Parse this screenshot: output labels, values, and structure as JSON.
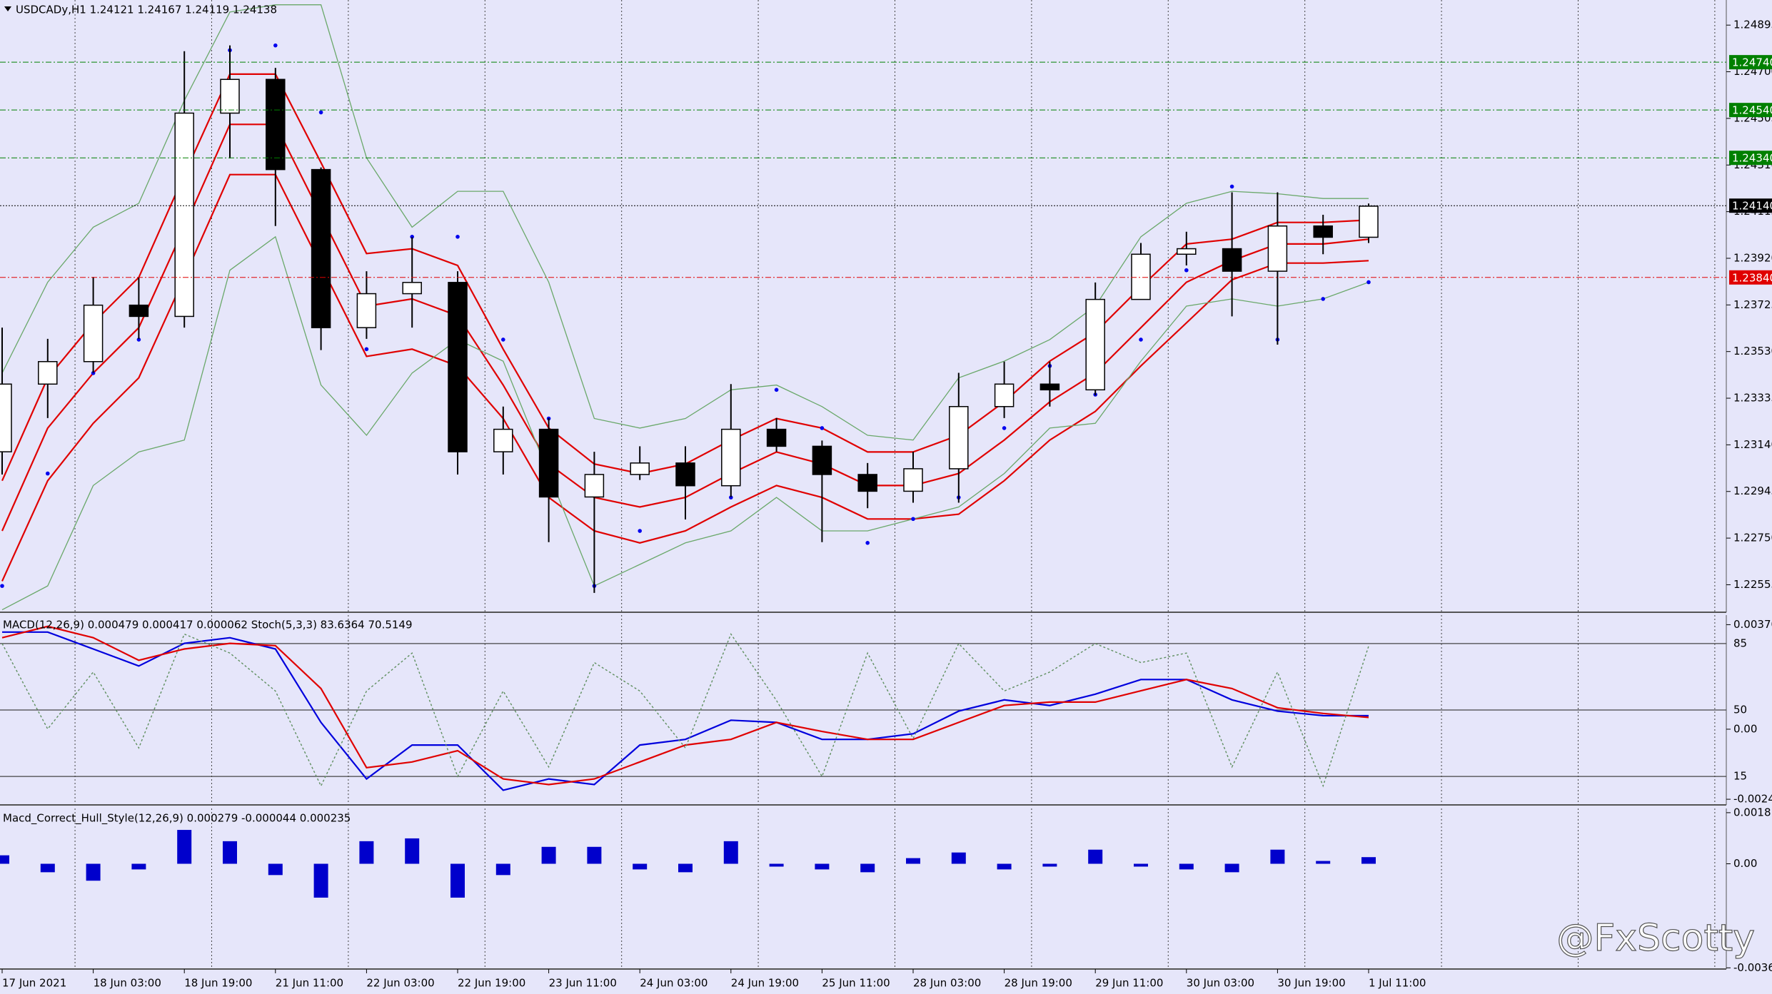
{
  "watermark": "@FxScotty",
  "chart_data": [
    {
      "type": "candlestick",
      "title": "USDCADy,H1  1.24121 1.24167 1.24119 1.24138",
      "categories": [
        "17 Jun 2021",
        null,
        "18 Jun 03:00",
        null,
        "18 Jun 19:00",
        null,
        "21 Jun 11:00",
        null,
        "22 Jun 03:00",
        null,
        "22 Jun 19:00",
        null,
        "23 Jun 11:00",
        null,
        "24 Jun 03:00",
        null,
        "24 Jun 19:00",
        null,
        "25 Jun 11:00",
        null,
        "28 Jun 03:00",
        null,
        "28 Jun 19:00",
        null,
        "29 Jun 11:00",
        null,
        "30 Jun 03:00",
        null,
        "30 Jun 19:00",
        null,
        "1 Jul 11:00"
      ],
      "open": [
        1.23111,
        1.23394,
        1.23488,
        1.23724,
        1.23677,
        1.24527,
        1.24668,
        1.24291,
        1.2363,
        1.23772,
        1.23819,
        1.23111,
        1.23205,
        1.22922,
        1.23016,
        1.23064,
        1.22969,
        1.23205,
        1.23134,
        1.23016,
        1.22946,
        1.2304,
        1.233,
        1.23394,
        1.2337,
        1.23748,
        1.23937,
        1.2396,
        1.23866,
        1.24055,
        1.24008
      ],
      "high": [
        1.2363,
        1.23583,
        1.23842,
        1.23842,
        1.24786,
        1.2481,
        1.24716,
        1.243,
        1.23866,
        1.24008,
        1.23866,
        1.233,
        1.23252,
        1.23111,
        1.23134,
        1.23134,
        1.23394,
        1.23252,
        1.23158,
        1.23064,
        1.23111,
        1.23441,
        1.23488,
        1.23488,
        1.23819,
        1.23984,
        1.24031,
        1.24196,
        1.24196,
        1.24102,
        1.24149
      ],
      "low": [
        1.23016,
        1.23252,
        1.23441,
        1.23583,
        1.2363,
        1.24338,
        1.24055,
        1.23536,
        1.23583,
        1.2363,
        1.23016,
        1.23016,
        1.22733,
        1.22521,
        1.22993,
        1.22828,
        1.22922,
        1.23111,
        1.22733,
        1.22875,
        1.22898,
        1.22898,
        1.23252,
        1.233,
        1.23347,
        1.23748,
        1.2389,
        1.23677,
        1.23559,
        1.23937,
        1.23984
      ],
      "close": [
        1.23394,
        1.23488,
        1.23724,
        1.23677,
        1.24527,
        1.24668,
        1.24291,
        1.2363,
        1.23772,
        1.23819,
        1.23111,
        1.23205,
        1.22922,
        1.23016,
        1.23064,
        1.22969,
        1.23205,
        1.23134,
        1.23016,
        1.22946,
        1.2304,
        1.233,
        1.23394,
        1.2337,
        1.23748,
        1.23937,
        1.2396,
        1.23866,
        1.24055,
        1.24008,
        1.24138
      ],
      "up_color": "#ffffff",
      "down_color": "#000000",
      "overlays": [
        {
          "color": "#e00000",
          "values": [
            1.2299,
            1.2342,
            1.2365,
            1.2384,
            1.2427,
            1.2469,
            1.2469,
            1.2432,
            1.2394,
            1.2396,
            1.2389,
            1.2354,
            1.2321,
            1.2306,
            1.2302,
            1.2306,
            1.2316,
            1.2325,
            1.2321,
            1.2311,
            1.2311,
            1.2318,
            1.2332,
            1.2349,
            1.2361,
            1.238,
            1.2398,
            1.24,
            1.2407,
            1.2407,
            1.2408
          ]
        },
        {
          "color": "#e00000",
          "values": [
            1.2278,
            1.2321,
            1.2344,
            1.2363,
            1.2405,
            1.2448,
            1.2448,
            1.241,
            1.2372,
            1.2375,
            1.2368,
            1.2339,
            1.2306,
            1.2292,
            1.2288,
            1.2292,
            1.2302,
            1.2311,
            1.2306,
            1.2297,
            1.2297,
            1.2302,
            1.2316,
            1.2332,
            1.2344,
            1.2363,
            1.2382,
            1.2391,
            1.2398,
            1.2398,
            1.24
          ]
        },
        {
          "color": "#e00000",
          "values": [
            1.2257,
            1.2299,
            1.2323,
            1.2342,
            1.2384,
            1.2427,
            1.2427,
            1.2389,
            1.2351,
            1.2354,
            1.2347,
            1.2325,
            1.2292,
            1.2278,
            1.2273,
            1.2278,
            1.2288,
            1.2297,
            1.2292,
            1.2283,
            1.2283,
            1.2285,
            1.2299,
            1.2316,
            1.2328,
            1.2347,
            1.2365,
            1.2383,
            1.239,
            1.239,
            1.2391
          ]
        },
        {
          "color": "#6aa86a",
          "values": [
            1.2344,
            1.2382,
            1.2405,
            1.2415,
            1.2458,
            1.2495,
            1.2498,
            1.2498,
            1.2434,
            1.2405,
            1.242,
            1.242,
            1.2382,
            1.2325,
            1.2321,
            1.2325,
            1.2337,
            1.2339,
            1.233,
            1.2318,
            1.2316,
            1.2342,
            1.2349,
            1.2358,
            1.2372,
            1.2401,
            1.2415,
            1.242,
            1.2419,
            1.2417,
            1.2417
          ]
        },
        {
          "color": "#6aa86a",
          "values": [
            1.2245,
            1.2255,
            1.2297,
            1.2311,
            1.2316,
            1.2387,
            1.2401,
            1.2339,
            1.2318,
            1.2344,
            1.2358,
            1.2349,
            1.2302,
            1.2255,
            1.2264,
            1.2273,
            1.2278,
            1.2292,
            1.2278,
            1.2278,
            1.2283,
            1.2288,
            1.2302,
            1.2321,
            1.2323,
            1.2349,
            1.2372,
            1.2375,
            1.2372,
            1.2375,
            1.2382
          ]
        }
      ],
      "sar": {
        "color": "#0000ee",
        "values": [
          1.2255,
          1.2302,
          1.2344,
          1.2358,
          1.2382,
          1.2479,
          1.2481,
          1.2453,
          1.2354,
          1.2401,
          1.2401,
          1.2358,
          1.2325,
          1.2255,
          1.2278,
          1.2302,
          1.2292,
          1.2337,
          1.2321,
          1.2273,
          1.2283,
          1.2292,
          1.2321,
          1.2347,
          1.2335,
          1.2358,
          1.2387,
          1.2422,
          1.2358,
          1.2375,
          1.2382
        ]
      },
      "levels": [
        {
          "value": 1.2474,
          "label": "1.24740",
          "color": "#008000"
        },
        {
          "value": 1.2454,
          "label": "1.24540",
          "color": "#008000"
        },
        {
          "value": 1.2434,
          "label": "1.24340",
          "color": "#008000"
        },
        {
          "value": 1.2414,
          "label": "1.24140",
          "color": "#000000"
        },
        {
          "value": 1.2384,
          "label": "1.23840",
          "color": "#e00000"
        }
      ],
      "ylim": [
        1.2244,
        1.25
      ],
      "yticks": [
        1.24895,
        {
          "value": 1.247,
          "label": "1.24700"
        },
        1.24505,
        {
          "value": 1.2431,
          "label": "1.24310"
        },
        1.24115,
        {
          "value": 1.2392,
          "label": "1.23920"
        },
        1.23725,
        {
          "value": 1.2353,
          "label": "1.23530"
        },
        1.23335,
        {
          "value": 1.2314,
          "label": "1.23140"
        },
        1.22945,
        {
          "value": 1.2275,
          "label": "1.22750"
        },
        1.22555
      ]
    },
    {
      "type": "line",
      "title": "MACD(12,26,9) 0.000479 0.000417 0.000062  Stoch(5,3,3) 83.6364 70.5149",
      "ylim": [
        -0.00268,
        0.00404
      ],
      "yticks": [
        0.003701,
        {
          "value": 0,
          "label": "0.00"
        },
        -0.00248
      ],
      "y2lim": [
        0,
        100
      ],
      "y2ticks": [
        85,
        50,
        15
      ],
      "series": [
        {
          "color": "#0000dd",
          "values": [
            0.00344,
            0.00344,
            0.00284,
            0.00224,
            0.00304,
            0.00324,
            0.00284,
            0.00024,
            -0.00176,
            -0.00056,
            -0.00056,
            -0.00216,
            -0.00176,
            -0.00196,
            -0.00056,
            -0.00036,
            0.00032,
            0.00024,
            -0.00036,
            -0.00036,
            -0.00016,
            0.00064,
            0.00104,
            0.00084,
            0.00124,
            0.00176,
            0.00176,
            0.00104,
            0.00064,
            0.00048,
            0.000479
          ]
        },
        {
          "color": "#e00000",
          "values": [
            0.00324,
            0.00364,
            0.00324,
            0.00244,
            0.00284,
            0.00304,
            0.00296,
            0.00144,
            -0.00136,
            -0.00116,
            -0.00076,
            -0.00176,
            -0.00196,
            -0.00176,
            -0.00116,
            -0.00056,
            -0.00036,
            0.00024,
            -8e-05,
            -0.00036,
            -0.00036,
            0.00024,
            0.00084,
            0.00096,
            0.00096,
            0.00136,
            0.00176,
            0.00144,
            0.00076,
            0.00056,
            0.000417
          ]
        },
        {
          "color": "#5f8f5f",
          "axis": "y2",
          "dashed": true,
          "values": [
            85,
            40,
            70,
            30,
            90,
            80,
            60,
            10,
            60,
            80,
            15,
            60,
            20,
            75,
            60,
            30,
            90,
            55,
            15,
            80,
            35,
            85,
            60,
            70,
            85,
            75,
            80,
            20,
            70,
            10,
            83.6364
          ]
        }
      ]
    },
    {
      "type": "bar",
      "title": "Macd_Correct_Hull_Style(12,26,9) 0.000279 -0.000044 0.000235",
      "ylim": [
        -0.00373,
        0.00196
      ],
      "yticks": [
        0.001811,
        {
          "value": 0,
          "label": "0.00"
        },
        -0.003688
      ],
      "color": "#0000cc",
      "values": [
        0.0003,
        -0.0003,
        -0.0006,
        -0.0002,
        0.0012,
        0.0008,
        -0.0004,
        -0.0012,
        0.0008,
        0.0009,
        -0.0012,
        -0.0004,
        0.0006,
        0.0006,
        -0.0002,
        -0.0003,
        0.0008,
        -0.0001,
        -0.0002,
        -0.0003,
        0.0002,
        0.0004,
        -0.0002,
        -0.0001,
        0.0005,
        -0.0001,
        -0.0002,
        -0.0003,
        0.0005,
        0.0001,
        0.000235
      ]
    }
  ]
}
